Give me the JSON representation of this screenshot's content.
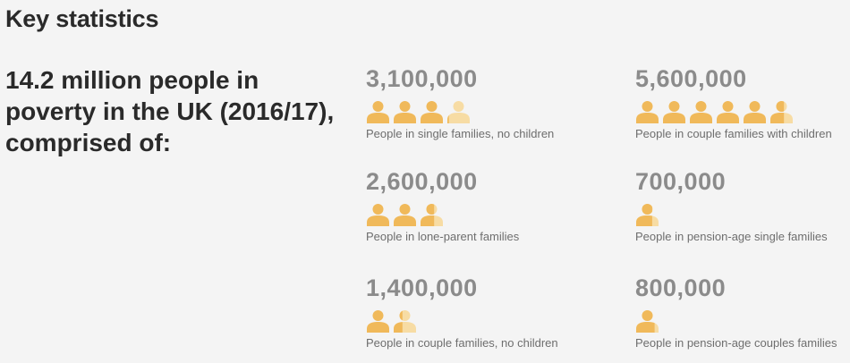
{
  "heading": "Key statistics",
  "summary": "14.2 million people in poverty in the UK (2016/17), comprised of:",
  "icon_colors": {
    "full": "#f0b95a",
    "faded": "#f7dca4"
  },
  "stats": [
    {
      "value": "3,100,000",
      "label": "People in single families, no children",
      "icons": 3.1
    },
    {
      "value": "5,600,000",
      "label": "People in couple families with children",
      "icons": 5.6
    },
    {
      "value": "2,600,000",
      "label": "People in lone-parent families",
      "icons": 2.6
    },
    {
      "value": "700,000",
      "label": "People in pension-age single families",
      "icons": 0.7
    },
    {
      "value": "1,400,000",
      "label": "People in couple families, no children",
      "icons": 1.4
    },
    {
      "value": "800,000",
      "label": "People in pension-age couples families",
      "icons": 0.8
    }
  ]
}
